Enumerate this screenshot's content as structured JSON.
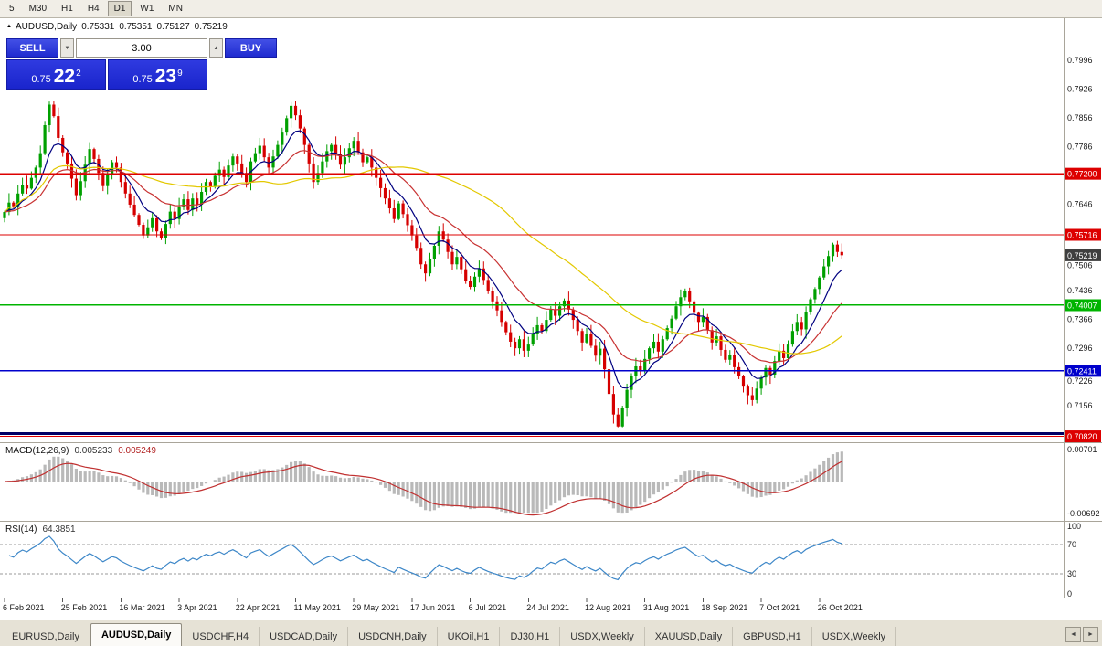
{
  "toolbar": {
    "timeframes": [
      "5",
      "M30",
      "H1",
      "H4",
      "D1",
      "W1",
      "MN"
    ],
    "active": "D1"
  },
  "info": {
    "symbol": "AUDUSD,Daily",
    "open": "0.75331",
    "high": "0.75351",
    "low": "0.75127",
    "close": "0.75219"
  },
  "one_click": {
    "sell_label": "SELL",
    "buy_label": "BUY",
    "volume": "3.00",
    "bid": {
      "prefix": "0.75",
      "big": "22",
      "sup": "2"
    },
    "ask": {
      "prefix": "0.75",
      "big": "23",
      "sup": "9"
    }
  },
  "icons": {
    "collapse": "▲",
    "spin_down": "▼",
    "spin_up": "▲",
    "scroll_left": "◄",
    "scroll_right": "►"
  },
  "price_axis": {
    "ticks": [
      "0.7996",
      "0.7926",
      "0.7856",
      "0.7786",
      "0.7646",
      "0.7506",
      "0.7436",
      "0.7366",
      "0.7296",
      "0.7226",
      "0.7156"
    ]
  },
  "macd": {
    "label": "MACD(12,26,9)",
    "value_main": "0.005233",
    "value_signal": "0.005249",
    "ticks": [
      "0.00701",
      "-0.00692"
    ]
  },
  "rsi": {
    "label": "RSI(14)",
    "value": "64.3851",
    "ticks": [
      "100",
      "70",
      "30",
      "0"
    ],
    "levels": [
      70,
      30
    ]
  },
  "tabs": [
    {
      "label": "EURUSD,Daily",
      "active": false
    },
    {
      "label": "AUDUSD,Daily",
      "active": true
    },
    {
      "label": "USDCHF,H4",
      "active": false
    },
    {
      "label": "USDCAD,Daily",
      "active": false
    },
    {
      "label": "USDCNH,Daily",
      "active": false
    },
    {
      "label": "UKOil,H1",
      "active": false
    },
    {
      "label": "DJ30,H1",
      "active": false
    },
    {
      "label": "USDX,Weekly",
      "active": false
    },
    {
      "label": "XAUUSD,Daily",
      "active": false
    },
    {
      "label": "GBPUSD,H1",
      "active": false
    },
    {
      "label": "USDX,Weekly",
      "active": false
    }
  ],
  "chart_data": {
    "type": "candlestick",
    "symbol": "AUDUSD",
    "timeframe": "Daily",
    "x_tick_labels": [
      "6 Feb 2021",
      "25 Feb 2021",
      "16 Mar 2021",
      "3 Apr 2021",
      "22 Apr 2021",
      "11 May 2021",
      "29 May 2021",
      "17 Jun 2021",
      "6 Jul 2021",
      "24 Jul 2021",
      "12 Aug 2021",
      "31 Aug 2021",
      "18 Sep 2021",
      "7 Oct 2021",
      "26 Oct 2021"
    ],
    "ylim": [
      0.702,
      0.808
    ],
    "closes": [
      0.7627,
      0.765,
      0.7641,
      0.7672,
      0.7693,
      0.7684,
      0.771,
      0.7735,
      0.777,
      0.7838,
      0.7888,
      0.786,
      0.7807,
      0.7772,
      0.7745,
      0.7708,
      0.7668,
      0.7702,
      0.7742,
      0.778,
      0.7756,
      0.7722,
      0.769,
      0.7718,
      0.7748,
      0.7735,
      0.77,
      0.7672,
      0.7645,
      0.762,
      0.7596,
      0.757,
      0.759,
      0.7612,
      0.758,
      0.7565,
      0.7598,
      0.7628,
      0.761,
      0.764,
      0.7658,
      0.7632,
      0.766,
      0.7645,
      0.7676,
      0.77,
      0.7688,
      0.7715,
      0.773,
      0.7712,
      0.774,
      0.7762,
      0.7745,
      0.7722,
      0.77,
      0.775,
      0.777,
      0.7788,
      0.776,
      0.7735,
      0.7762,
      0.779,
      0.782,
      0.7855,
      0.7885,
      0.7862,
      0.783,
      0.779,
      0.7745,
      0.77,
      0.7722,
      0.775,
      0.7775,
      0.779,
      0.7768,
      0.7742,
      0.776,
      0.7782,
      0.78,
      0.7772,
      0.7748,
      0.776,
      0.7735,
      0.771,
      0.7685,
      0.766,
      0.7636,
      0.761,
      0.7648,
      0.7622,
      0.7595,
      0.757,
      0.754,
      0.75,
      0.7478,
      0.7512,
      0.7545,
      0.758,
      0.756,
      0.753,
      0.75,
      0.7518,
      0.7488,
      0.746,
      0.7445,
      0.747,
      0.749,
      0.7462,
      0.7435,
      0.741,
      0.7388,
      0.736,
      0.7335,
      0.7312,
      0.7296,
      0.7318,
      0.729,
      0.7305,
      0.733,
      0.7352,
      0.7338,
      0.7365,
      0.739,
      0.7375,
      0.7398,
      0.7412,
      0.739,
      0.7365,
      0.7338,
      0.731,
      0.733,
      0.7302,
      0.7278,
      0.7295,
      0.7245,
      0.7185,
      0.7135,
      0.7106,
      0.7152,
      0.7195,
      0.7228,
      0.7252,
      0.724,
      0.727,
      0.7296,
      0.7312,
      0.7288,
      0.7318,
      0.7345,
      0.7368,
      0.7398,
      0.742,
      0.7435,
      0.741,
      0.7382,
      0.736,
      0.7372,
      0.734,
      0.731,
      0.7325,
      0.7292,
      0.7268,
      0.728,
      0.725,
      0.7228,
      0.7205,
      0.7182,
      0.717,
      0.7198,
      0.7225,
      0.7248,
      0.7232,
      0.7265,
      0.729,
      0.7272,
      0.7305,
      0.7338,
      0.736,
      0.7342,
      0.7385,
      0.7415,
      0.744,
      0.7468,
      0.7495,
      0.752,
      0.7548,
      0.753,
      0.7522
    ],
    "overlays": [
      {
        "type": "ema",
        "period": 8,
        "color": "#000080"
      },
      {
        "type": "ema",
        "period": 21,
        "color": "#c83232"
      },
      {
        "type": "sma",
        "period": 50,
        "color": "#e3c800"
      }
    ],
    "hlines": [
      {
        "label": "0.77200",
        "price": 0.772,
        "color": "#dd0000",
        "width": 1.3
      },
      {
        "label": "0.75716",
        "price": 0.75716,
        "color": "#dd0000",
        "width": 1.3
      },
      {
        "label": "0.74007",
        "price": 0.74007,
        "color": "#00b400",
        "width": 1.5
      },
      {
        "label": "0.72411",
        "price": 0.72411,
        "color": "#0000cc",
        "width": 1.5
      },
      {
        "label": "",
        "price": 0.7089,
        "color": "#000066",
        "width": 3
      },
      {
        "label": "0.70820",
        "price": 0.7082,
        "color": "#dd0000",
        "width": 1.3
      }
    ],
    "current_price": {
      "label": "0.75219",
      "price": 0.75219,
      "bg": "#3f3f3f"
    },
    "sub_indicators": [
      {
        "name": "MACD",
        "params": [
          12,
          26,
          9
        ],
        "last_values": [
          0.005233,
          0.005249
        ]
      },
      {
        "name": "RSI",
        "params": [
          14
        ],
        "last_value": 64.3851
      }
    ]
  }
}
